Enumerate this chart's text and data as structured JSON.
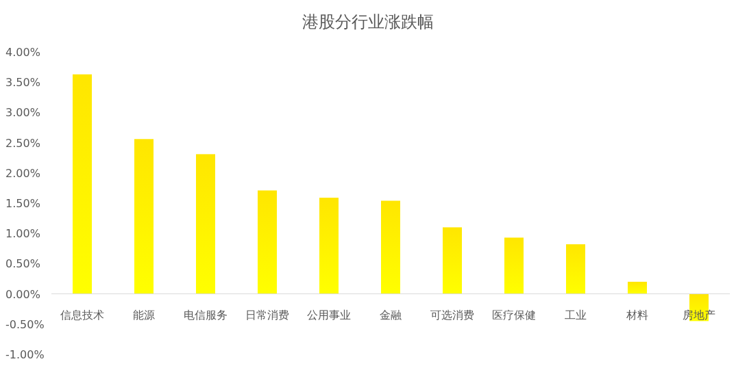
{
  "chart_data": {
    "type": "bar",
    "title": "港股分行业涨跌幅",
    "categories": [
      "信息技术",
      "能源",
      "电信服务",
      "日常消费",
      "公用事业",
      "金融",
      "可选消费",
      "医疗保健",
      "工业",
      "材料",
      "房地产"
    ],
    "values": [
      3.63,
      2.56,
      2.31,
      1.71,
      1.59,
      1.54,
      1.1,
      0.93,
      0.82,
      0.2,
      -0.45
    ],
    "color": "#ffe600",
    "ylim": [
      -1,
      4
    ],
    "yticks": [
      {
        "value": -1,
        "label": "-1.00%"
      },
      {
        "value": -0.5,
        "label": "-0.50%"
      },
      {
        "value": 0,
        "label": "0.00%"
      },
      {
        "value": 0.5,
        "label": "0.50%"
      },
      {
        "value": 1,
        "label": "1.00%"
      },
      {
        "value": 1.5,
        "label": "1.50%"
      },
      {
        "value": 2,
        "label": "2.00%"
      },
      {
        "value": 2.5,
        "label": "2.50%"
      },
      {
        "value": 3,
        "label": "3.00%"
      },
      {
        "value": 3.5,
        "label": "3.50%"
      },
      {
        "value": 4,
        "label": "4.00%"
      }
    ]
  }
}
